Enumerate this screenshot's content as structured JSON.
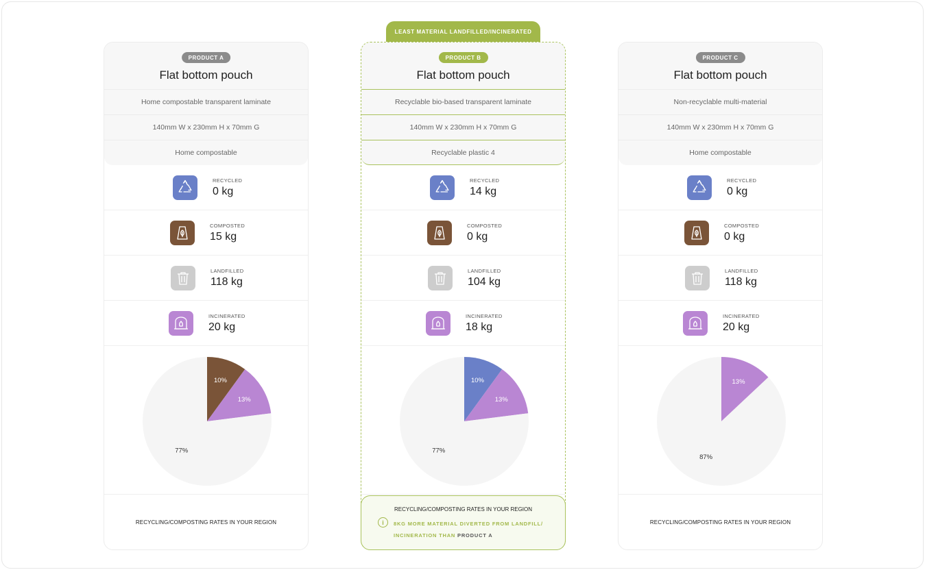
{
  "banner": "LEAST MATERIAL LANDFILLED/INCINERATED",
  "labels": {
    "recycled": "RECYCLED",
    "composted": "COMPOSTED",
    "landfilled": "LANDFILLED",
    "incinerated": "INCINERATED",
    "rates": "RECYCLING/COMPOSTING RATES IN YOUR REGION"
  },
  "colors": {
    "recycled": "#6a80c8",
    "composted": "#7a5438",
    "landfilled": "#cdcdcd",
    "incinerated": "#b986d3",
    "accent": "#a2b84a",
    "pie_rest": "#f5f5f5"
  },
  "products": [
    {
      "tag": "PRODUCT A",
      "title": "Flat bottom pouch",
      "material": "Home compostable transparent laminate",
      "dimensions": "140mm W x 230mm H x 70mm G",
      "end_of_life": "Home compostable",
      "recycled": "0 kg",
      "composted": "15 kg",
      "landfilled": "118 kg",
      "incinerated": "20 kg"
    },
    {
      "tag": "PRODUCT B",
      "title": "Flat bottom pouch",
      "material": "Recyclable bio-based transparent laminate",
      "dimensions": "140mm W x 230mm H x 70mm G",
      "end_of_life": "Recyclable plastic 4",
      "recycled": "14 kg",
      "composted": "0 kg",
      "landfilled": "104 kg",
      "incinerated": "18 kg"
    },
    {
      "tag": "PRODUCT C",
      "title": "Flat bottom pouch",
      "material": "Non-recyclable multi-material",
      "dimensions": "140mm W x 230mm H x 70mm G",
      "end_of_life": "Home compostable",
      "recycled": "0 kg",
      "composted": "0 kg",
      "landfilled": "118 kg",
      "incinerated": "20 kg"
    }
  ],
  "chart_data": [
    {
      "type": "pie",
      "slices": [
        {
          "category": "composted",
          "value": 10,
          "label": "10%"
        },
        {
          "category": "incinerated",
          "value": 13,
          "label": "13%"
        },
        {
          "category": "rest",
          "value": 77,
          "label": "77%"
        }
      ]
    },
    {
      "type": "pie",
      "slices": [
        {
          "category": "recycled",
          "value": 10,
          "label": "10%"
        },
        {
          "category": "incinerated",
          "value": 13,
          "label": "13%"
        },
        {
          "category": "rest",
          "value": 77,
          "label": "77%"
        }
      ]
    },
    {
      "type": "pie",
      "slices": [
        {
          "category": "incinerated",
          "value": 13,
          "label": "13%"
        },
        {
          "category": "rest",
          "value": 87,
          "label": "87%"
        }
      ]
    }
  ],
  "info": {
    "text": "8KG MORE MATERIAL DIVERTED FROM LANDFILL/ INCINERATION THAN",
    "ref": "PRODUCT A"
  }
}
